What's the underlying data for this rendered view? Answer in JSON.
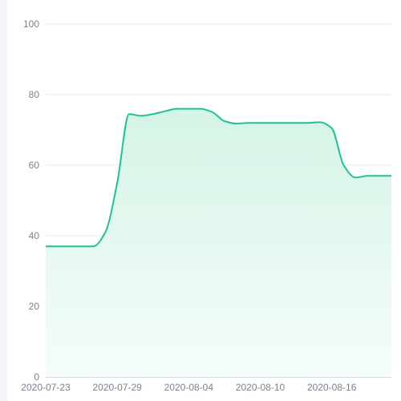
{
  "chart_data": {
    "type": "area",
    "title": "",
    "xlabel": "",
    "ylabel": "",
    "ylim": [
      0,
      100
    ],
    "y_ticks": [
      "0",
      "20",
      "40",
      "60",
      "80",
      "100"
    ],
    "x_tick_labels": [
      "2020-07-23",
      "2020-07-29",
      "2020-08-04",
      "2020-08-10",
      "2020-08-16"
    ],
    "grid": "horizontal",
    "legend": "none",
    "colors": {
      "line": "#1ec48a",
      "fill_top": "#d4f4e6",
      "fill_bottom": "#f6fdf9",
      "grid": "#e6e8ee",
      "axis": "#d9dbe3",
      "tick_text": "#7b8090"
    },
    "x_range": [
      "2020-07-23",
      "2020-08-21"
    ],
    "series": [
      {
        "points": [
          [
            "2020-07-23",
            37
          ],
          [
            "2020-07-24",
            37
          ],
          [
            "2020-07-25",
            37
          ],
          [
            "2020-07-26",
            37
          ],
          [
            "2020-07-27",
            37
          ],
          [
            "2020-07-28",
            41
          ],
          [
            "2020-07-29",
            55
          ],
          [
            "2020-07-30",
            74.5
          ],
          [
            "2020-07-31",
            74
          ],
          [
            "2020-08-01",
            74.5
          ],
          [
            "2020-08-02",
            75.3
          ],
          [
            "2020-08-03",
            76
          ],
          [
            "2020-08-04",
            76
          ],
          [
            "2020-08-05",
            76
          ],
          [
            "2020-08-06",
            75
          ],
          [
            "2020-08-07",
            72.5
          ],
          [
            "2020-08-08",
            71.8
          ],
          [
            "2020-08-09",
            72
          ],
          [
            "2020-08-10",
            72
          ],
          [
            "2020-08-11",
            72
          ],
          [
            "2020-08-12",
            72
          ],
          [
            "2020-08-13",
            72
          ],
          [
            "2020-08-14",
            72
          ],
          [
            "2020-08-15",
            72.2
          ],
          [
            "2020-08-16",
            70.5
          ],
          [
            "2020-08-17",
            60
          ],
          [
            "2020-08-18",
            56.5
          ],
          [
            "2020-08-19",
            57
          ],
          [
            "2020-08-20",
            57
          ],
          [
            "2020-08-21",
            57
          ]
        ]
      }
    ]
  }
}
